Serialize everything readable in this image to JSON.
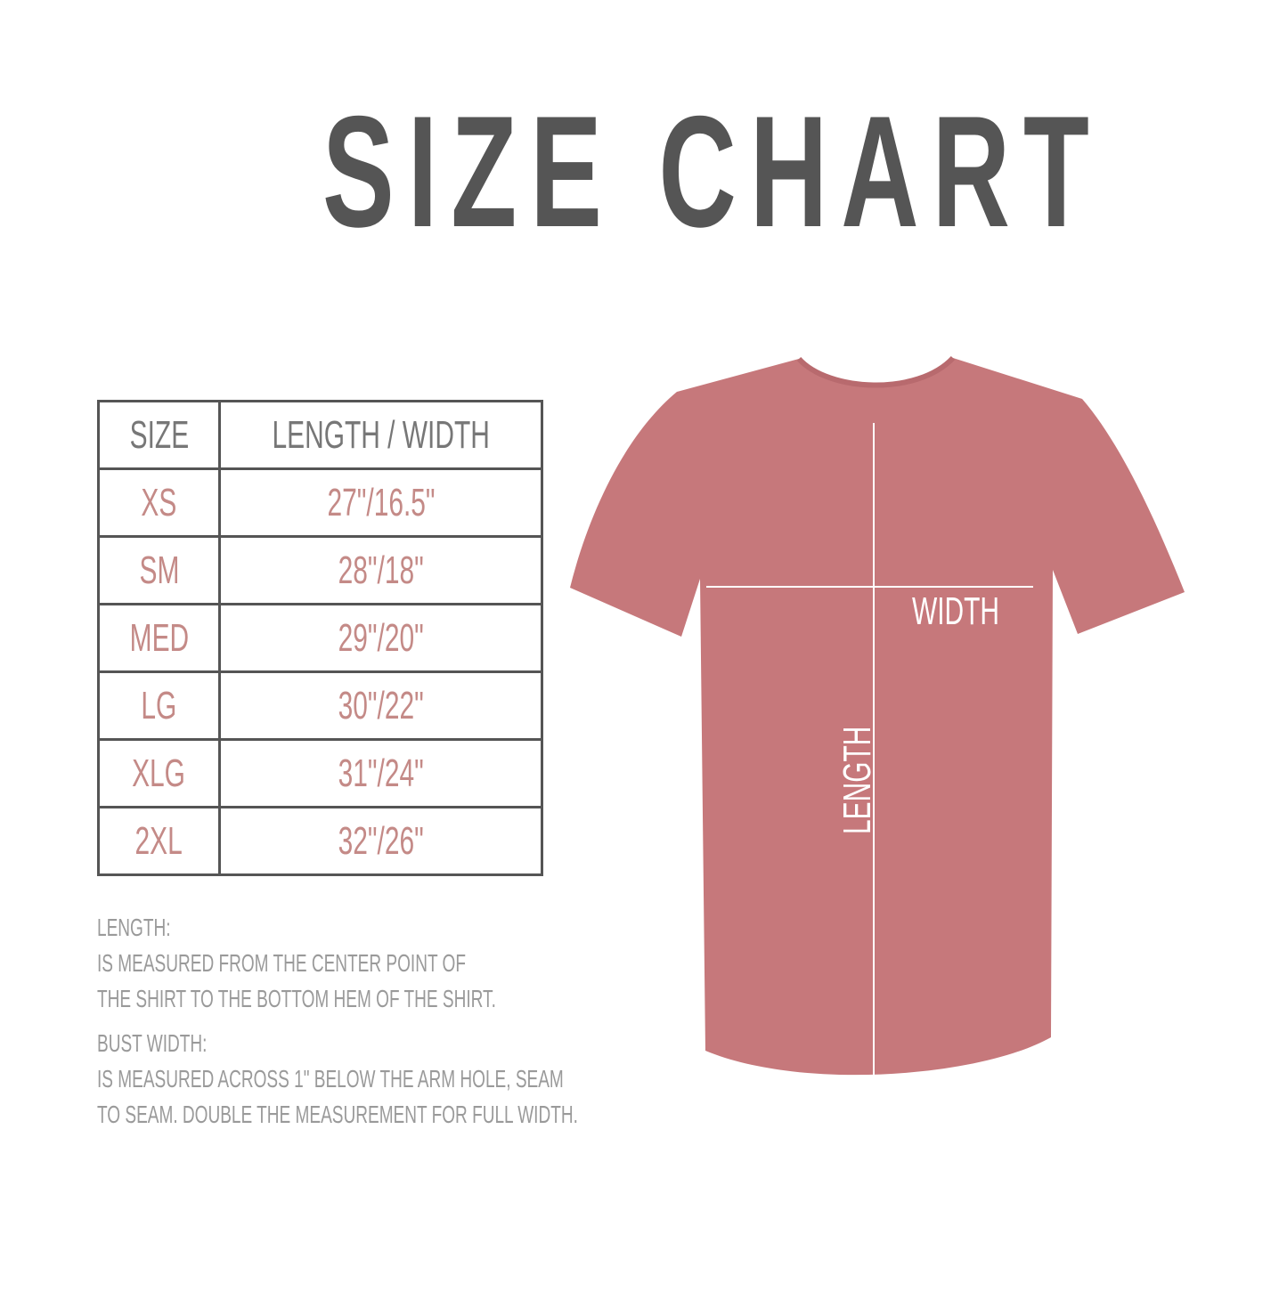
{
  "title": "SIZE CHART",
  "table": {
    "headers": [
      "SIZE",
      "LENGTH / WIDTH"
    ],
    "rows": [
      {
        "size": "XS",
        "measure": "27\"/16.5\""
      },
      {
        "size": "SM",
        "measure": "28\"/18\""
      },
      {
        "size": "MED",
        "measure": "29\"/20\""
      },
      {
        "size": "LG",
        "measure": "30\"/22\""
      },
      {
        "size": "XLG",
        "measure": "31\"/24\""
      },
      {
        "size": "2XL",
        "measure": "32\"/26\""
      }
    ]
  },
  "notes": {
    "length_heading": "LENGTH:",
    "length_line1": "IS MEASURED FROM THE CENTER POINT OF",
    "length_line2": "THE SHIRT TO THE BOTTOM HEM OF THE SHIRT.",
    "width_heading": "BUST WIDTH:",
    "width_line1": "IS MEASURED ACROSS  1\" BELOW THE ARM HOLE, SEAM",
    "width_line2": "TO SEAM. DOUBLE THE MEASUREMENT FOR FULL WIDTH."
  },
  "shirt": {
    "width_label": "WIDTH",
    "length_label": "LENGTH",
    "color": "#c6787b"
  },
  "colors": {
    "title": "#555555",
    "header_text": "#777777",
    "value_text": "#c48a87",
    "notes_text": "#9a9a9a",
    "border": "#555555"
  }
}
